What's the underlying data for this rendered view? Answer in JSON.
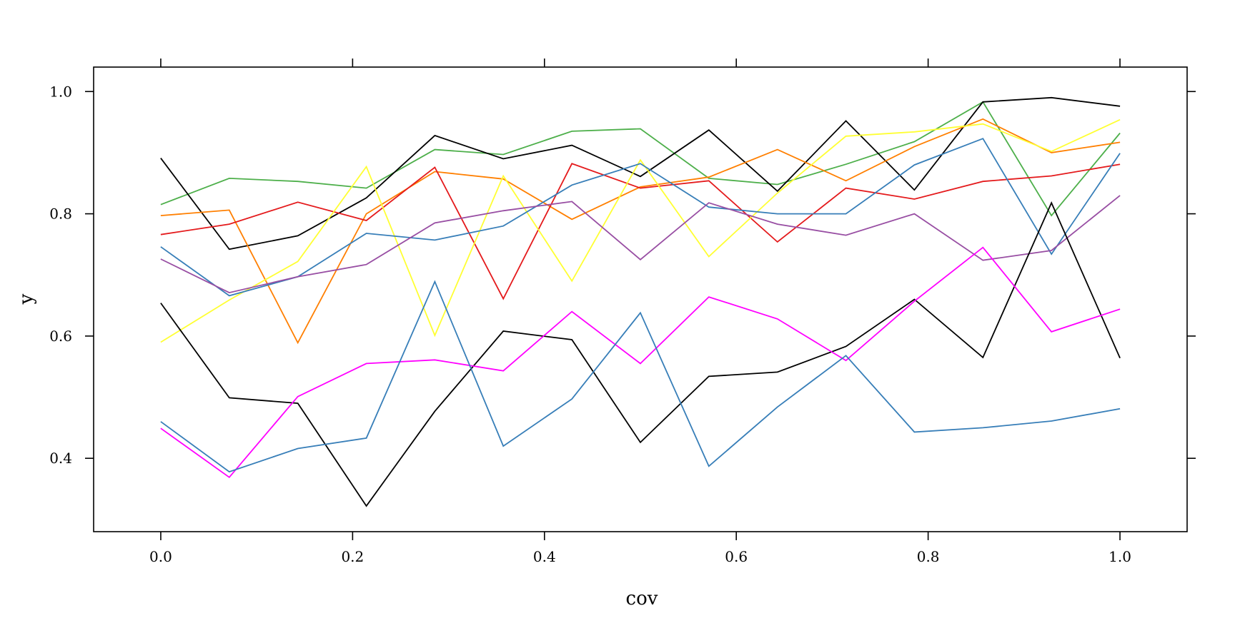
{
  "chart_data": {
    "type": "line",
    "xlabel": "cov",
    "ylabel": "y",
    "xlim": [
      -0.07,
      1.07
    ],
    "ylim": [
      0.28,
      1.04
    ],
    "x_ticks": [
      0.0,
      0.2,
      0.4,
      0.6,
      0.8,
      1.0
    ],
    "x_tick_labels": [
      "0.0",
      "0.2",
      "0.4",
      "0.6",
      "0.8",
      "1.0"
    ],
    "y_ticks": [
      0.4,
      0.6,
      0.8,
      1.0
    ],
    "y_tick_labels": [
      "0.4",
      "0.6",
      "0.8",
      "1.0"
    ],
    "grid": false,
    "legend": "none",
    "x": [
      0.0,
      0.0714,
      0.1429,
      0.2143,
      0.2857,
      0.3571,
      0.4286,
      0.5,
      0.5714,
      0.6429,
      0.7143,
      0.7857,
      0.8571,
      0.9286,
      1.0
    ],
    "series": [
      {
        "color": "#4daf4a",
        "values": [
          0.815,
          0.858,
          0.853,
          0.842,
          0.905,
          0.897,
          0.935,
          0.939,
          0.858,
          0.848,
          0.881,
          0.918,
          0.983,
          0.797,
          0.932
        ]
      },
      {
        "color": "#000000",
        "values": [
          0.891,
          0.742,
          0.764,
          0.826,
          0.928,
          0.89,
          0.912,
          0.861,
          0.937,
          0.837,
          0.952,
          0.839,
          0.983,
          0.99,
          0.976
        ]
      },
      {
        "color": "#ff7f00",
        "values": [
          0.797,
          0.806,
          0.589,
          0.8,
          0.869,
          0.857,
          0.791,
          0.844,
          0.86,
          0.905,
          0.854,
          0.91,
          0.955,
          0.9,
          0.917
        ]
      },
      {
        "color": "#e41a1c",
        "values": [
          0.766,
          0.783,
          0.819,
          0.789,
          0.876,
          0.661,
          0.882,
          0.842,
          0.854,
          0.754,
          0.842,
          0.824,
          0.853,
          0.862,
          0.881
        ]
      },
      {
        "color": "#ffff33",
        "values": [
          0.59,
          0.659,
          0.722,
          0.877,
          0.601,
          0.862,
          0.69,
          0.888,
          0.73,
          0.834,
          0.927,
          0.934,
          0.947,
          0.902,
          0.954
        ]
      },
      {
        "color": "#377eb8",
        "values": [
          0.746,
          0.666,
          0.697,
          0.768,
          0.757,
          0.78,
          0.847,
          0.882,
          0.811,
          0.8,
          0.8,
          0.88,
          0.923,
          0.734,
          0.899
        ]
      },
      {
        "color": "#984ea3",
        "values": [
          0.726,
          0.671,
          0.697,
          0.717,
          0.785,
          0.805,
          0.82,
          0.725,
          0.818,
          0.783,
          0.765,
          0.8,
          0.724,
          0.74,
          0.83
        ]
      },
      {
        "color": "#000000",
        "values": [
          0.654,
          0.499,
          0.49,
          0.322,
          0.477,
          0.608,
          0.594,
          0.426,
          0.534,
          0.541,
          0.583,
          0.66,
          0.565,
          0.818,
          0.564
        ]
      },
      {
        "color": "#ff00ff",
        "values": [
          0.449,
          0.369,
          0.501,
          0.555,
          0.561,
          0.543,
          0.64,
          0.555,
          0.664,
          0.628,
          0.56,
          0.657,
          0.745,
          0.607,
          0.644
        ]
      },
      {
        "color": "#377eb8",
        "values": [
          0.46,
          0.378,
          0.416,
          0.433,
          0.689,
          0.42,
          0.497,
          0.638,
          0.387,
          0.484,
          0.568,
          0.443,
          0.45,
          0.461,
          0.481
        ]
      }
    ]
  }
}
